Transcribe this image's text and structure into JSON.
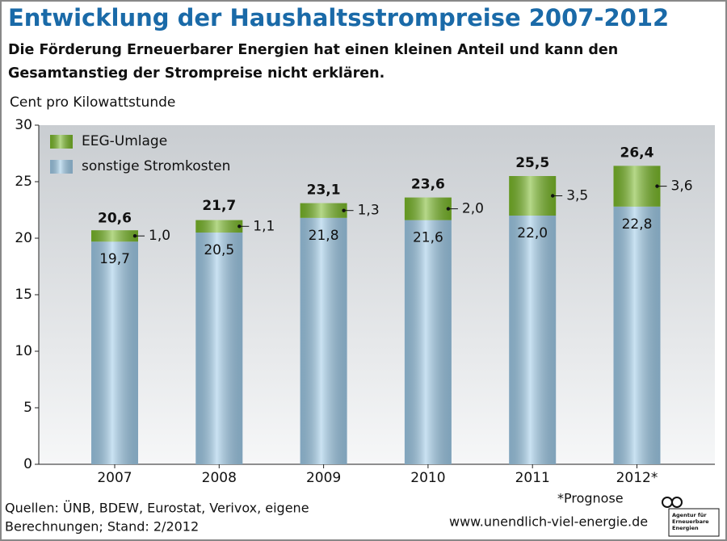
{
  "chart_data": {
    "type": "stacked-bar",
    "title": "Entwicklung der Haushaltsstrompreise 2007-2012",
    "subtitle": [
      "Die Förderung Erneuerbarer Energien hat einen kleinen Anteil und kann den",
      "Gesamtanstieg der Strompreise nicht erklären."
    ],
    "y_label": "Cent pro Kilowattstunde",
    "categories": [
      "2007",
      "2008",
      "2009",
      "2010",
      "2011",
      "2012*"
    ],
    "series": [
      {
        "name": "sonstige Stromkosten",
        "color": "#9fcbe8",
        "values": [
          19.7,
          20.5,
          21.8,
          21.6,
          22.0,
          22.8
        ],
        "value_labels": [
          "19,7",
          "20,5",
          "21,8",
          "21,6",
          "22,0",
          "22,8"
        ]
      },
      {
        "name": "EEG-Umlage",
        "color": "#7ab929",
        "values": [
          1.0,
          1.1,
          1.3,
          2.0,
          3.5,
          3.6
        ],
        "value_labels": [
          "1,0",
          "1,1",
          "1,3",
          "2,0",
          "3,5",
          "3,6"
        ]
      }
    ],
    "totals": [
      20.6,
      21.7,
      23.1,
      23.6,
      25.5,
      26.4
    ],
    "total_labels": [
      "20,6",
      "21,7",
      "23,1",
      "23,6",
      "25,5",
      "26,4"
    ],
    "ylim": [
      0,
      30
    ],
    "yticks": [
      0,
      5,
      10,
      15,
      20,
      25,
      30
    ],
    "grid": false,
    "legend": "top-left",
    "footnote": "*Prognose",
    "sources": [
      "Quellen: ÜNB, BDEW, Eurostat, Verivox, eigene",
      "Berechnungen; Stand: 2/2012"
    ],
    "url": "www.unendlich-viel-energie.de",
    "logo_text": [
      "Agentur für",
      "Erneuerbare",
      "Energien"
    ]
  }
}
